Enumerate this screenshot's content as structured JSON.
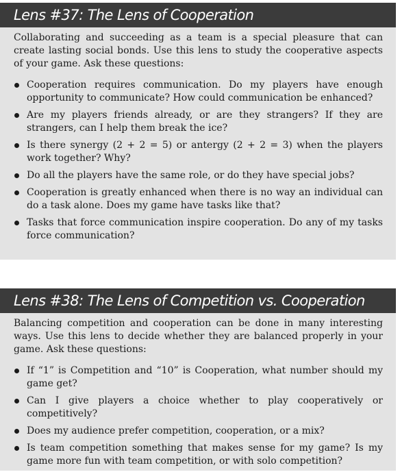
{
  "lenses": [
    {
      "title": "Lens #37: The Lens of Cooperation",
      "intro": "Collaborating and succeeding as a team is a special pleasure that can create lasting social bonds. Use this lens to study the cooperative aspects of your game. Ask these questions:",
      "questions": [
        "Cooperation requires communication. Do my players have enough opportunity to communicate? How could communication be enhanced?",
        "Are my players friends already, or are they strangers? If they are strangers, can I help them break the ice?",
        "Is there synergy (2 + 2 = 5) or antergy (2 + 2 = 3) when the players work together? Why?",
        "Do all the players have the same role, or do they have special jobs?",
        "Cooperation is greatly enhanced when there is no way an individual can do a task alone. Does my game have tasks like that?",
        "Tasks that force communication inspire cooperation. Do any of my tasks force communication?"
      ]
    },
    {
      "title": "Lens #38: The Lens of Competition vs. Cooperation",
      "intro": "Balancing competition and cooperation can be done in many interesting ways. Use this lens to decide whether they are balanced properly in your game. Ask these questions:",
      "questions": [
        "If “1” is Competition and “10” is Cooperation, what number should my game get?",
        "Can I give players a choice whether to play cooperatively or competitively?",
        "Does my audience prefer competition, cooperation, or a mix?",
        "Is team competition something that makes sense for my game? Is my game more fun with team competition, or with solo competition?"
      ]
    }
  ]
}
